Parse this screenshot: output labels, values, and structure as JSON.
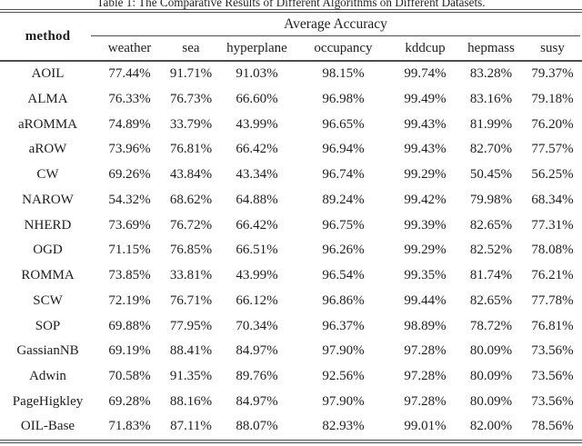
{
  "caption": "Table 1: The Comparative Results of Different Algorithms on Different Datasets.",
  "table": {
    "method_header": "method",
    "span_header": "Average Accuracy",
    "dataset_headers": [
      "weather",
      "sea",
      "hyperplane",
      "occupancy",
      "kddcup",
      "hepmass",
      "susy"
    ],
    "rows": [
      {
        "method": "AOIL",
        "values": [
          "77.44%",
          "91.71%",
          "91.03%",
          "98.15%",
          "99.74%",
          "83.28%",
          "79.37%"
        ]
      },
      {
        "method": "ALMA",
        "values": [
          "76.33%",
          "76.73%",
          "66.60%",
          "96.98%",
          "99.49%",
          "83.16%",
          "79.18%"
        ]
      },
      {
        "method": "aROMMA",
        "values": [
          "74.89%",
          "33.79%",
          "43.99%",
          "96.65%",
          "99.43%",
          "81.99%",
          "76.20%"
        ]
      },
      {
        "method": "aROW",
        "values": [
          "73.96%",
          "76.81%",
          "66.42%",
          "96.94%",
          "99.43%",
          "82.70%",
          "77.57%"
        ]
      },
      {
        "method": "CW",
        "values": [
          "69.26%",
          "43.84%",
          "43.34%",
          "96.74%",
          "99.29%",
          "50.45%",
          "56.25%"
        ]
      },
      {
        "method": "NAROW",
        "values": [
          "54.32%",
          "68.62%",
          "64.88%",
          "89.24%",
          "99.42%",
          "79.98%",
          "68.34%"
        ]
      },
      {
        "method": "NHERD",
        "values": [
          "73.69%",
          "76.72%",
          "66.42%",
          "96.75%",
          "99.39%",
          "82.65%",
          "77.31%"
        ]
      },
      {
        "method": "OGD",
        "values": [
          "71.15%",
          "76.85%",
          "66.51%",
          "96.26%",
          "99.29%",
          "82.52%",
          "78.08%"
        ]
      },
      {
        "method": "ROMMA",
        "values": [
          "73.85%",
          "33.81%",
          "43.99%",
          "96.54%",
          "99.35%",
          "81.74%",
          "76.21%"
        ]
      },
      {
        "method": "SCW",
        "values": [
          "72.19%",
          "76.71%",
          "66.12%",
          "96.86%",
          "99.44%",
          "82.65%",
          "77.78%"
        ]
      },
      {
        "method": "SOP",
        "values": [
          "69.88%",
          "77.95%",
          "70.34%",
          "96.37%",
          "98.89%",
          "78.72%",
          "76.81%"
        ]
      },
      {
        "method": "GassianNB",
        "values": [
          "69.19%",
          "88.41%",
          "84.97%",
          "97.90%",
          "97.28%",
          "80.09%",
          "73.56%"
        ]
      },
      {
        "method": "Adwin",
        "values": [
          "70.58%",
          "91.35%",
          "89.76%",
          "92.56%",
          "97.28%",
          "80.09%",
          "73.56%"
        ]
      },
      {
        "method": "PageHigkley",
        "values": [
          "69.28%",
          "88.16%",
          "84.97%",
          "97.90%",
          "97.28%",
          "80.09%",
          "73.56%"
        ]
      },
      {
        "method": "OIL-Base",
        "values": [
          "71.83%",
          "87.11%",
          "88.07%",
          "82.93%",
          "99.01%",
          "82.00%",
          "78.56%"
        ]
      }
    ]
  },
  "chart_data": {
    "type": "table",
    "title": "Table 1: The Comparative Results of Different Algorithms on Different Datasets.",
    "column_group": "Average Accuracy",
    "columns": [
      "method",
      "weather",
      "sea",
      "hyperplane",
      "occupancy",
      "kddcup",
      "hepmass",
      "susy"
    ],
    "rows": [
      [
        "AOIL",
        "77.44%",
        "91.71%",
        "91.03%",
        "98.15%",
        "99.74%",
        "83.28%",
        "79.37%"
      ],
      [
        "ALMA",
        "76.33%",
        "76.73%",
        "66.60%",
        "96.98%",
        "99.49%",
        "83.16%",
        "79.18%"
      ],
      [
        "aROMMA",
        "74.89%",
        "33.79%",
        "43.99%",
        "96.65%",
        "99.43%",
        "81.99%",
        "76.20%"
      ],
      [
        "aROW",
        "73.96%",
        "76.81%",
        "66.42%",
        "96.94%",
        "99.43%",
        "82.70%",
        "77.57%"
      ],
      [
        "CW",
        "69.26%",
        "43.84%",
        "43.34%",
        "96.74%",
        "99.29%",
        "50.45%",
        "56.25%"
      ],
      [
        "NAROW",
        "54.32%",
        "68.62%",
        "64.88%",
        "89.24%",
        "99.42%",
        "79.98%",
        "68.34%"
      ],
      [
        "NHERD",
        "73.69%",
        "76.72%",
        "66.42%",
        "96.75%",
        "99.39%",
        "82.65%",
        "77.31%"
      ],
      [
        "OGD",
        "71.15%",
        "76.85%",
        "66.51%",
        "96.26%",
        "99.29%",
        "82.52%",
        "78.08%"
      ],
      [
        "ROMMA",
        "73.85%",
        "33.81%",
        "43.99%",
        "96.54%",
        "99.35%",
        "81.74%",
        "76.21%"
      ],
      [
        "SCW",
        "72.19%",
        "76.71%",
        "66.12%",
        "96.86%",
        "99.44%",
        "82.65%",
        "77.78%"
      ],
      [
        "SOP",
        "69.88%",
        "77.95%",
        "70.34%",
        "96.37%",
        "98.89%",
        "78.72%",
        "76.81%"
      ],
      [
        "GassianNB",
        "69.19%",
        "88.41%",
        "84.97%",
        "97.90%",
        "97.28%",
        "80.09%",
        "73.56%"
      ],
      [
        "Adwin",
        "70.58%",
        "91.35%",
        "89.76%",
        "92.56%",
        "97.28%",
        "80.09%",
        "73.56%"
      ],
      [
        "PageHigkley",
        "69.28%",
        "88.16%",
        "84.97%",
        "97.90%",
        "97.28%",
        "80.09%",
        "73.56%"
      ],
      [
        "OIL-Base",
        "71.83%",
        "87.11%",
        "88.07%",
        "82.93%",
        "99.01%",
        "82.00%",
        "78.56%"
      ]
    ],
    "rule_color": "#4d4d4d",
    "text_color": "#1e1e1e",
    "background": "#ffffff"
  }
}
